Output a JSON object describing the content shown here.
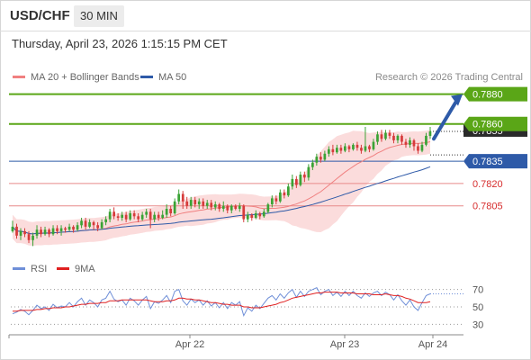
{
  "header": {
    "symbol": "USD/CHF",
    "timeframe": "30 MIN"
  },
  "timestamp": "Thursday, April 23, 2026 1:15:15 PM CET",
  "credit": "Research © 2026 Trading Central",
  "legend": {
    "ma20": {
      "label": "MA 20 + Bollinger Bands",
      "color": "#f08080"
    },
    "ma50": {
      "label": "MA 50",
      "color": "#2e5aa8"
    }
  },
  "rsi_legend": {
    "rsi": {
      "label": "RSI",
      "color": "#6f8fd8"
    },
    "ma9": {
      "label": "9MA",
      "color": "#e02020"
    }
  },
  "colors": {
    "bull": "#3aa335",
    "bear": "#d63b3b",
    "band_fill": "#fbdcdc",
    "resistance": "#5aa617",
    "pivot": "#2e5aa8",
    "support": "#e88a8a",
    "support_text": "#d62d2d",
    "arrow": "#2e5aa8"
  },
  "chart_data": [
    {
      "type": "candlestick",
      "title": "USD/CHF 30 MIN",
      "x_tick_labels": [
        "Apr 22",
        "Apr 23",
        "Apr 24"
      ],
      "price_range": [
        0.7771,
        0.7887
      ],
      "levels": [
        {
          "value": 0.788,
          "label": "0.7880",
          "kind": "resistance"
        },
        {
          "value": 0.786,
          "label": "0.7860",
          "kind": "resistance"
        },
        {
          "value": 0.7835,
          "label": "0.7835",
          "kind": "pivot"
        },
        {
          "value": 0.782,
          "label": "0.7820",
          "kind": "support"
        },
        {
          "value": 0.7805,
          "label": "0.7805",
          "kind": "support"
        }
      ],
      "last_price": 0.7855,
      "last_price_label": "0.7855",
      "projection": {
        "from": 0.785,
        "to": 0.788
      },
      "series": [
        {
          "name": "MA 20 + Bollinger Bands"
        },
        {
          "name": "MA 50"
        }
      ],
      "candles": [
        [
          0.7788,
          0.7791,
          0.7787,
          0.7795
        ],
        [
          0.7791,
          0.7785,
          0.7783,
          0.7793
        ],
        [
          0.7785,
          0.7788,
          0.7782,
          0.779
        ],
        [
          0.7788,
          0.7786,
          0.7784,
          0.779
        ],
        [
          0.7786,
          0.7782,
          0.778,
          0.7788
        ],
        [
          0.7782,
          0.7785,
          0.7778,
          0.7787
        ],
        [
          0.7785,
          0.7789,
          0.7783,
          0.7792
        ],
        [
          0.7789,
          0.7786,
          0.7784,
          0.7791
        ],
        [
          0.7786,
          0.7789,
          0.7785,
          0.7791
        ],
        [
          0.7789,
          0.7786,
          0.7784,
          0.779
        ],
        [
          0.7786,
          0.779,
          0.7785,
          0.7792
        ],
        [
          0.779,
          0.7788,
          0.7786,
          0.7792
        ],
        [
          0.7788,
          0.779,
          0.7785,
          0.7792
        ],
        [
          0.779,
          0.7789,
          0.7787,
          0.7791
        ],
        [
          0.7789,
          0.7791,
          0.7788,
          0.7793
        ],
        [
          0.7791,
          0.7789,
          0.7787,
          0.7792
        ],
        [
          0.7789,
          0.7792,
          0.7788,
          0.7794
        ],
        [
          0.7792,
          0.7795,
          0.779,
          0.7797
        ],
        [
          0.7795,
          0.7791,
          0.7789,
          0.7797
        ],
        [
          0.7791,
          0.7794,
          0.779,
          0.7796
        ],
        [
          0.7794,
          0.7792,
          0.7789,
          0.7795
        ],
        [
          0.7792,
          0.779,
          0.7788,
          0.7794
        ],
        [
          0.779,
          0.7794,
          0.7789,
          0.7796
        ],
        [
          0.7794,
          0.7796,
          0.7792,
          0.7798
        ],
        [
          0.7796,
          0.7801,
          0.7794,
          0.7803
        ],
        [
          0.7801,
          0.7798,
          0.7796,
          0.7804
        ],
        [
          0.7798,
          0.7797,
          0.7795,
          0.78
        ],
        [
          0.7797,
          0.7799,
          0.7795,
          0.7801
        ],
        [
          0.7799,
          0.7796,
          0.7794,
          0.7801
        ],
        [
          0.7796,
          0.78,
          0.7795,
          0.7802
        ],
        [
          0.78,
          0.7798,
          0.7796,
          0.7802
        ],
        [
          0.7798,
          0.7796,
          0.7794,
          0.78
        ],
        [
          0.7796,
          0.7799,
          0.7795,
          0.7801
        ],
        [
          0.7799,
          0.7801,
          0.7797,
          0.7803
        ],
        [
          0.7801,
          0.7796,
          0.779,
          0.7803
        ],
        [
          0.7796,
          0.7799,
          0.7794,
          0.7801
        ],
        [
          0.7799,
          0.7797,
          0.7795,
          0.7801
        ],
        [
          0.7797,
          0.7799,
          0.7796,
          0.7802
        ],
        [
          0.7799,
          0.7803,
          0.7797,
          0.7806
        ],
        [
          0.7803,
          0.78,
          0.7798,
          0.7805
        ],
        [
          0.78,
          0.7808,
          0.7799,
          0.781
        ],
        [
          0.7808,
          0.7813,
          0.7806,
          0.7816
        ],
        [
          0.7813,
          0.7808,
          0.7803,
          0.7815
        ],
        [
          0.7808,
          0.7805,
          0.7803,
          0.7811
        ],
        [
          0.7805,
          0.7809,
          0.7803,
          0.7811
        ],
        [
          0.7809,
          0.7806,
          0.7804,
          0.7811
        ],
        [
          0.7806,
          0.7808,
          0.7803,
          0.781
        ],
        [
          0.7808,
          0.7805,
          0.7803,
          0.781
        ],
        [
          0.7805,
          0.7807,
          0.7803,
          0.7809
        ],
        [
          0.7807,
          0.7804,
          0.7802,
          0.7809
        ],
        [
          0.7804,
          0.7806,
          0.7802,
          0.7808
        ],
        [
          0.7806,
          0.7803,
          0.7801,
          0.7807
        ],
        [
          0.7803,
          0.7805,
          0.7801,
          0.7808
        ],
        [
          0.7805,
          0.7802,
          0.78,
          0.7806
        ],
        [
          0.7802,
          0.7805,
          0.78,
          0.7806
        ],
        [
          0.7805,
          0.7803,
          0.7802,
          0.7806
        ],
        [
          0.7803,
          0.7805,
          0.7801,
          0.7807
        ],
        [
          0.7805,
          0.7796,
          0.7794,
          0.7806
        ],
        [
          0.7796,
          0.7799,
          0.7794,
          0.7801
        ],
        [
          0.7799,
          0.7797,
          0.7795,
          0.78
        ],
        [
          0.7797,
          0.78,
          0.7796,
          0.7802
        ],
        [
          0.78,
          0.7798,
          0.7796,
          0.7801
        ],
        [
          0.7798,
          0.7801,
          0.7797,
          0.7803
        ],
        [
          0.7801,
          0.7806,
          0.78,
          0.7807
        ],
        [
          0.7806,
          0.781,
          0.7804,
          0.7812
        ],
        [
          0.781,
          0.7808,
          0.7806,
          0.7812
        ],
        [
          0.7808,
          0.7814,
          0.7807,
          0.7816
        ],
        [
          0.7814,
          0.7812,
          0.781,
          0.7816
        ],
        [
          0.7812,
          0.7818,
          0.7811,
          0.782
        ],
        [
          0.7818,
          0.7823,
          0.7816,
          0.7826
        ],
        [
          0.7823,
          0.7819,
          0.7817,
          0.7825
        ],
        [
          0.7819,
          0.7826,
          0.7818,
          0.7828
        ],
        [
          0.7826,
          0.7824,
          0.7821,
          0.7828
        ],
        [
          0.7824,
          0.7831,
          0.7822,
          0.7833
        ],
        [
          0.7831,
          0.7834,
          0.7829,
          0.7836
        ],
        [
          0.7834,
          0.7838,
          0.7832,
          0.784
        ],
        [
          0.7838,
          0.7836,
          0.7834,
          0.7841
        ],
        [
          0.7836,
          0.784,
          0.7835,
          0.7842
        ],
        [
          0.784,
          0.7843,
          0.7838,
          0.7845
        ],
        [
          0.7843,
          0.7841,
          0.7839,
          0.7846
        ],
        [
          0.7841,
          0.7844,
          0.784,
          0.7846
        ],
        [
          0.7844,
          0.7842,
          0.784,
          0.7846
        ],
        [
          0.7842,
          0.7845,
          0.7841,
          0.7847
        ],
        [
          0.7845,
          0.7843,
          0.7841,
          0.7846
        ],
        [
          0.7843,
          0.7846,
          0.7842,
          0.7847
        ],
        [
          0.7846,
          0.7844,
          0.7842,
          0.7848
        ],
        [
          0.7844,
          0.7842,
          0.784,
          0.7846
        ],
        [
          0.7842,
          0.7845,
          0.7841,
          0.7858
        ],
        [
          0.7845,
          0.7843,
          0.7841,
          0.7846
        ],
        [
          0.7843,
          0.7848,
          0.7842,
          0.785
        ],
        [
          0.7848,
          0.7853,
          0.7846,
          0.7855
        ],
        [
          0.7853,
          0.785,
          0.7848,
          0.7856
        ],
        [
          0.785,
          0.7854,
          0.7849,
          0.7856
        ],
        [
          0.7854,
          0.7852,
          0.785,
          0.7856
        ],
        [
          0.7852,
          0.7849,
          0.7847,
          0.7854
        ],
        [
          0.7849,
          0.7852,
          0.7847,
          0.7853
        ],
        [
          0.7852,
          0.7848,
          0.7846,
          0.7853
        ],
        [
          0.7848,
          0.7846,
          0.7844,
          0.785
        ],
        [
          0.7846,
          0.7849,
          0.7844,
          0.7851
        ],
        [
          0.7849,
          0.7845,
          0.7842,
          0.785
        ],
        [
          0.7845,
          0.7842,
          0.784,
          0.7847
        ],
        [
          0.7842,
          0.7846,
          0.7841,
          0.7848
        ],
        [
          0.7846,
          0.7852,
          0.7845,
          0.7854
        ],
        [
          0.7852,
          0.7855,
          0.785,
          0.7858
        ]
      ]
    },
    {
      "type": "line",
      "title": "RSI",
      "ylim": [
        20,
        80
      ],
      "y_tick_labels": [
        "70",
        "50",
        "30"
      ],
      "series": [
        {
          "name": "RSI",
          "values": [
            42,
            44,
            47,
            45,
            41,
            46,
            52,
            48,
            50,
            46,
            53,
            49,
            51,
            50,
            55,
            50,
            56,
            60,
            52,
            58,
            55,
            50,
            58,
            60,
            68,
            59,
            56,
            58,
            52,
            60,
            57,
            52,
            58,
            62,
            48,
            56,
            54,
            58,
            63,
            55,
            68,
            70,
            57,
            52,
            59,
            55,
            58,
            52,
            57,
            51,
            55,
            49,
            55,
            48,
            55,
            52,
            56,
            40,
            49,
            45,
            52,
            48,
            54,
            60,
            63,
            58,
            65,
            60,
            66,
            70,
            61,
            68,
            62,
            68,
            70,
            72,
            64,
            68,
            70,
            63,
            67,
            62,
            68,
            63,
            68,
            63,
            60,
            66,
            62,
            66,
            68,
            63,
            67,
            64,
            58,
            64,
            57,
            52,
            58,
            50,
            46,
            55,
            63,
            65
          ]
        },
        {
          "name": "9MA",
          "values": [
            45,
            45,
            46,
            46,
            46,
            46,
            47,
            47,
            48,
            48,
            49,
            49,
            49,
            50,
            50,
            51,
            52,
            53,
            53,
            54,
            54,
            54,
            55,
            55,
            57,
            57,
            57,
            58,
            58,
            58,
            58,
            58,
            58,
            58,
            57,
            56,
            56,
            56,
            57,
            57,
            58,
            60,
            60,
            59,
            59,
            58,
            58,
            57,
            56,
            55,
            55,
            54,
            53,
            53,
            52,
            52,
            52,
            50,
            50,
            49,
            49,
            49,
            50,
            51,
            52,
            53,
            55,
            56,
            58,
            60,
            61,
            62,
            63,
            64,
            65,
            66,
            66,
            67,
            67,
            67,
            67,
            66,
            66,
            66,
            66,
            65,
            65,
            65,
            65,
            64,
            64,
            64,
            65,
            64,
            63,
            63,
            62,
            60,
            59,
            57,
            55,
            55,
            55,
            56
          ]
        }
      ]
    }
  ]
}
